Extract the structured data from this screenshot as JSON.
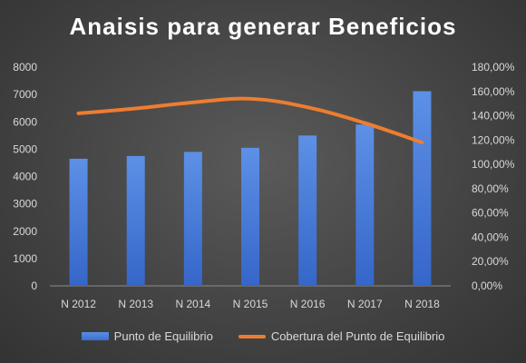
{
  "chart_data": {
    "type": "bar",
    "title": "Anaisis para generar Beneficios",
    "categories": [
      "N 2012",
      "N 2013",
      "N 2014",
      "N 2015",
      "N 2016",
      "N 2017",
      "N 2018"
    ],
    "series": [
      {
        "name": "Punto de Equilibrio",
        "type": "bar",
        "axis": "left",
        "color": "#4472c4",
        "values": [
          4650,
          4750,
          4900,
          5050,
          5500,
          5900,
          7120
        ]
      },
      {
        "name": "Cobertura del Punto de Equilibrio",
        "type": "line",
        "axis": "right",
        "color": "#ed7d31",
        "values": [
          1.42,
          1.46,
          1.51,
          1.54,
          1.47,
          1.34,
          1.18
        ]
      }
    ],
    "y_left": {
      "min": 0,
      "max": 8000,
      "ticks": [
        "0",
        "1000",
        "2000",
        "3000",
        "4000",
        "5000",
        "6000",
        "7000",
        "8000"
      ]
    },
    "y_right": {
      "min": 0,
      "max": 1.8,
      "ticks": [
        "0,00%",
        "20,00%",
        "40,00%",
        "60,00%",
        "80,00%",
        "100,00%",
        "120,00%",
        "140,00%",
        "160,00%",
        "180,00%"
      ]
    },
    "grid": false,
    "legend_position": "bottom"
  }
}
